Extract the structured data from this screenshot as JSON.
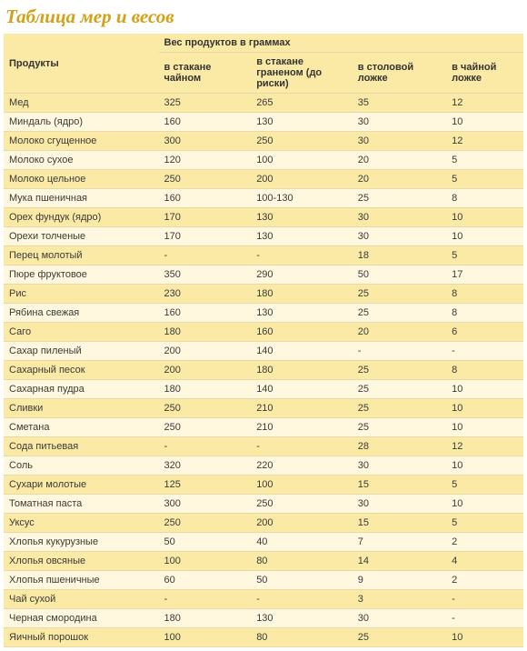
{
  "title": "Таблица мер и весов",
  "headers": {
    "product": "Продукты",
    "group": "Вес продуктов в граммах",
    "tea_glass": "в стакане чайном",
    "cut_glass": "в стакане граненом (до риски)",
    "tbsp": "в столовой ложке",
    "tsp": "в чайной ложке"
  },
  "rows": [
    {
      "p": "Мед",
      "a": "325",
      "b": "265",
      "c": "35",
      "d": "12"
    },
    {
      "p": "Миндаль (ядро)",
      "a": "160",
      "b": "130",
      "c": "30",
      "d": "10"
    },
    {
      "p": "Молоко сгущенное",
      "a": "300",
      "b": "250",
      "c": "30",
      "d": "12"
    },
    {
      "p": "Молоко сухое",
      "a": "120",
      "b": "100",
      "c": "20",
      "d": "5"
    },
    {
      "p": "Молоко цельное",
      "a": "250",
      "b": "200",
      "c": "20",
      "d": "5"
    },
    {
      "p": "Мука пшеничная",
      "a": "160",
      "b": "100-130",
      "c": "25",
      "d": "8"
    },
    {
      "p": "Орех фундук (ядро)",
      "a": "170",
      "b": "130",
      "c": "30",
      "d": "10"
    },
    {
      "p": "Орехи толченые",
      "a": "170",
      "b": "130",
      "c": "30",
      "d": "10"
    },
    {
      "p": "Перец молотый",
      "a": "-",
      "b": "-",
      "c": "18",
      "d": "5"
    },
    {
      "p": "Пюре фруктовое",
      "a": "350",
      "b": "290",
      "c": "50",
      "d": "17"
    },
    {
      "p": "Рис",
      "a": "230",
      "b": "180",
      "c": "25",
      "d": "8"
    },
    {
      "p": "Рябина свежая",
      "a": "160",
      "b": "130",
      "c": "25",
      "d": "8"
    },
    {
      "p": "Саго",
      "a": "180",
      "b": "160",
      "c": "20",
      "d": "6"
    },
    {
      "p": "Сахар пиленый",
      "a": "200",
      "b": "140",
      "c": "-",
      "d": "-"
    },
    {
      "p": "Сахарный песок",
      "a": "200",
      "b": "180",
      "c": "25",
      "d": "8"
    },
    {
      "p": "Сахарная пудра",
      "a": "180",
      "b": "140",
      "c": "25",
      "d": "10"
    },
    {
      "p": "Сливки",
      "a": "250",
      "b": "210",
      "c": "25",
      "d": "10"
    },
    {
      "p": "Сметана",
      "a": "250",
      "b": "210",
      "c": "25",
      "d": "10"
    },
    {
      "p": "Сода питьевая",
      "a": "-",
      "b": "-",
      "c": "28",
      "d": "12"
    },
    {
      "p": "Соль",
      "a": "320",
      "b": "220",
      "c": "30",
      "d": "10"
    },
    {
      "p": "Сухари молотые",
      "a": "125",
      "b": "100",
      "c": "15",
      "d": "5"
    },
    {
      "p": "Томатная паста",
      "a": "300",
      "b": "250",
      "c": "30",
      "d": "10"
    },
    {
      "p": "Уксус",
      "a": "250",
      "b": "200",
      "c": "15",
      "d": "5"
    },
    {
      "p": "Хлопья кукурузные",
      "a": "50",
      "b": "40",
      "c": "7",
      "d": "2"
    },
    {
      "p": "Хлопья овсяные",
      "a": "100",
      "b": "80",
      "c": "14",
      "d": "4"
    },
    {
      "p": "Хлопья пшеничные",
      "a": "60",
      "b": "50",
      "c": "9",
      "d": "2"
    },
    {
      "p": "Чай сухой",
      "a": "-",
      "b": "-",
      "c": "3",
      "d": "-"
    },
    {
      "p": "Черная смородина",
      "a": "180",
      "b": "130",
      "c": "30",
      "d": "-"
    },
    {
      "p": "Яичный порошок",
      "a": "100",
      "b": "80",
      "c": "25",
      "d": "10"
    }
  ]
}
